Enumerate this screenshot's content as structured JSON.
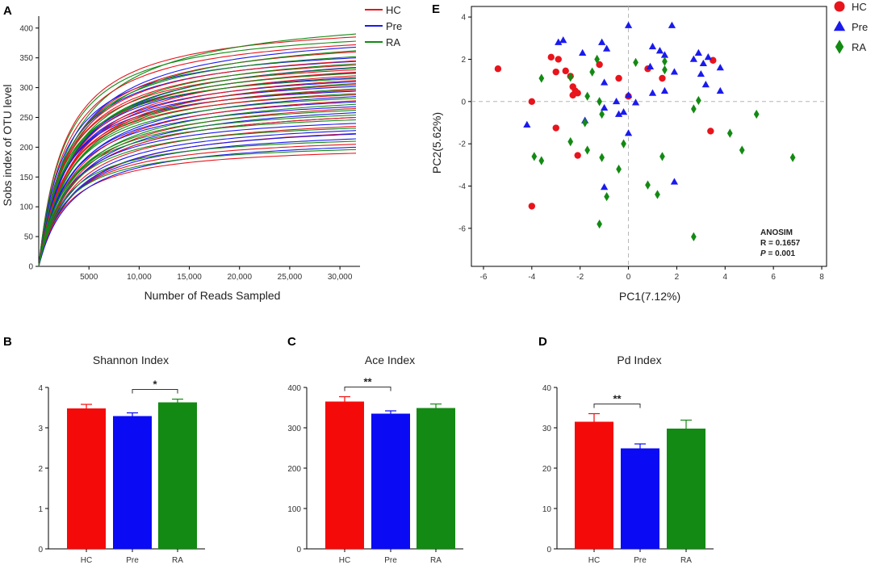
{
  "chart_data": [
    {
      "panel": "A",
      "type": "line",
      "xlabel": "Number of Reads Sampled",
      "ylabel": "Sobs index of OTU level",
      "xlim": [
        0,
        32000
      ],
      "ylim": [
        0,
        420
      ],
      "xticks": [
        5000,
        10000,
        15000,
        20000,
        25000,
        30000
      ],
      "xtick_labels": [
        "5000",
        "10,000",
        "15,000",
        "20,000",
        "25,000",
        "30,000"
      ],
      "yticks": [
        0,
        50,
        100,
        150,
        200,
        250,
        300,
        350,
        400
      ],
      "ytick_labels": [
        "0",
        "50",
        "100",
        "150",
        "200",
        "250",
        "300",
        "350",
        "400"
      ],
      "legend": [
        {
          "name": "HC",
          "color": "#e8141c"
        },
        {
          "name": "Pre",
          "color": "#1a1aee"
        },
        {
          "name": "RA",
          "color": "#138a13"
        }
      ],
      "series": [
        {
          "group": "HC",
          "final_values": [
            385,
            372,
            360,
            345,
            338,
            330,
            326,
            320,
            312,
            305,
            296,
            288,
            278,
            265,
            250,
            235,
            223,
            205,
            190
          ]
        },
        {
          "group": "Pre",
          "final_values": [
            368,
            350,
            344,
            334,
            325,
            317,
            310,
            302,
            294,
            285,
            276,
            268,
            258,
            250,
            240,
            228,
            222,
            214,
            200
          ]
        },
        {
          "group": "RA",
          "final_values": [
            390,
            378,
            362,
            352,
            340,
            333,
            324,
            315,
            307,
            298,
            290,
            282,
            272,
            262,
            254,
            246,
            232,
            210,
            196
          ]
        }
      ]
    },
    {
      "panel": "E",
      "type": "scatter",
      "xlabel": "PC1(7.12%)",
      "ylabel": "PC2(5.62%)",
      "xlim": [
        -6.5,
        8.2
      ],
      "ylim": [
        -7.8,
        4.5
      ],
      "xticks": [
        -6,
        -4,
        -2,
        0,
        2,
        4,
        6,
        8
      ],
      "xtick_labels": [
        "-6",
        "-4",
        "-2",
        "0",
        "2",
        "4",
        "6",
        "8"
      ],
      "yticks": [
        -6,
        -4,
        -2,
        0,
        2,
        4
      ],
      "ytick_labels": [
        "-6",
        "-4",
        "-2",
        "0",
        "2",
        "4"
      ],
      "legend": [
        {
          "name": "HC",
          "color": "#e8141c",
          "shape": "circle"
        },
        {
          "name": "Pre",
          "color": "#1a1aee",
          "shape": "triangle"
        },
        {
          "name": "RA",
          "color": "#138a13",
          "shape": "diamond"
        }
      ],
      "annotation": {
        "title": "ANOSIM",
        "r_text": "R = 0.1657",
        "p_label": "P",
        "p_text": " = 0.001"
      },
      "series": [
        {
          "name": "HC",
          "points": [
            [
              -5.4,
              1.55
            ],
            [
              -4.0,
              0.0
            ],
            [
              -3.2,
              2.1
            ],
            [
              -2.9,
              2.0
            ],
            [
              -3.0,
              1.4
            ],
            [
              -2.6,
              1.45
            ],
            [
              -2.4,
              1.2
            ],
            [
              -2.3,
              0.7
            ],
            [
              -2.2,
              0.5
            ],
            [
              -2.3,
              0.3
            ],
            [
              -2.1,
              0.4
            ],
            [
              -1.2,
              1.75
            ],
            [
              -0.4,
              1.1
            ],
            [
              0.8,
              1.55
            ],
            [
              -3.0,
              -1.25
            ],
            [
              -2.1,
              -2.55
            ],
            [
              -4.0,
              -4.95
            ],
            [
              0.0,
              0.25
            ],
            [
              1.4,
              1.1
            ],
            [
              3.5,
              1.95
            ],
            [
              3.4,
              -1.4
            ]
          ]
        },
        {
          "name": "Pre",
          "points": [
            [
              -2.9,
              2.8
            ],
            [
              -2.7,
              2.9
            ],
            [
              -1.9,
              2.3
            ],
            [
              -1.1,
              2.8
            ],
            [
              -0.9,
              2.5
            ],
            [
              0.0,
              3.6
            ],
            [
              1.0,
              2.6
            ],
            [
              1.3,
              2.4
            ],
            [
              1.8,
              3.6
            ],
            [
              1.5,
              2.2
            ],
            [
              2.7,
              2.0
            ],
            [
              2.9,
              2.3
            ],
            [
              3.1,
              1.8
            ],
            [
              3.3,
              2.1
            ],
            [
              3.8,
              1.6
            ],
            [
              3.0,
              1.3
            ],
            [
              0.9,
              1.65
            ],
            [
              1.9,
              1.4
            ],
            [
              -1.0,
              0.9
            ],
            [
              -0.5,
              0.0
            ],
            [
              0.0,
              0.3
            ],
            [
              0.3,
              -0.05
            ],
            [
              1.0,
              0.4
            ],
            [
              1.5,
              0.5
            ],
            [
              3.2,
              0.8
            ],
            [
              3.8,
              0.5
            ],
            [
              -0.2,
              -0.5
            ],
            [
              -0.4,
              -0.6
            ],
            [
              -4.2,
              -1.1
            ],
            [
              -1.8,
              -0.9
            ],
            [
              0.0,
              -1.5
            ],
            [
              -1.0,
              -0.3
            ],
            [
              1.9,
              -3.8
            ],
            [
              -1.0,
              -4.05
            ]
          ]
        },
        {
          "name": "RA",
          "points": [
            [
              -3.6,
              1.1
            ],
            [
              -2.4,
              1.15
            ],
            [
              -1.5,
              1.4
            ],
            [
              -1.3,
              2.0
            ],
            [
              -1.7,
              0.25
            ],
            [
              -1.2,
              0.0
            ],
            [
              -1.1,
              -0.6
            ],
            [
              -1.8,
              -1.0
            ],
            [
              -1.7,
              -2.3
            ],
            [
              -1.1,
              -2.65
            ],
            [
              -2.4,
              -1.9
            ],
            [
              -3.9,
              -2.6
            ],
            [
              -3.6,
              -2.8
            ],
            [
              -0.2,
              -2.0
            ],
            [
              -0.4,
              -3.2
            ],
            [
              -0.9,
              -4.5
            ],
            [
              -1.2,
              -5.8
            ],
            [
              0.8,
              -3.95
            ],
            [
              1.2,
              -4.4
            ],
            [
              1.4,
              -2.6
            ],
            [
              0.3,
              1.85
            ],
            [
              1.5,
              1.5
            ],
            [
              1.5,
              1.9
            ],
            [
              2.7,
              -0.35
            ],
            [
              2.9,
              0.05
            ],
            [
              4.2,
              -1.5
            ],
            [
              4.7,
              -2.3
            ],
            [
              5.3,
              -0.6
            ],
            [
              6.8,
              -2.65
            ],
            [
              2.7,
              -6.4
            ]
          ]
        }
      ]
    },
    {
      "panel": "B",
      "type": "bar",
      "title": "Shannon Index",
      "categories": [
        "HC",
        "Pre",
        "RA"
      ],
      "values": [
        3.48,
        3.29,
        3.63
      ],
      "errors": [
        0.1,
        0.08,
        0.08
      ],
      "colors": [
        "#f50a0a",
        "#0a0af5",
        "#138a13"
      ],
      "ylim": [
        0,
        4
      ],
      "yticks": [
        0,
        1,
        2,
        3,
        4
      ],
      "ytick_labels": [
        "0",
        "1",
        "2",
        "3",
        "4"
      ],
      "significance": {
        "from": 1,
        "to": 2,
        "label": "*"
      }
    },
    {
      "panel": "C",
      "type": "bar",
      "title": "Ace Index",
      "categories": [
        "HC",
        "Pre",
        "RA"
      ],
      "values": [
        365,
        335,
        349
      ],
      "errors": [
        12,
        7,
        10
      ],
      "colors": [
        "#f50a0a",
        "#0a0af5",
        "#138a13"
      ],
      "ylim": [
        0,
        400
      ],
      "yticks": [
        0,
        100,
        200,
        300,
        400
      ],
      "ytick_labels": [
        "0",
        "100",
        "200",
        "300",
        "400"
      ],
      "significance": {
        "from": 0,
        "to": 1,
        "label": "**"
      }
    },
    {
      "panel": "D",
      "type": "bar",
      "title": "Pd Index",
      "categories": [
        "HC",
        "Pre",
        "RA"
      ],
      "values": [
        31.5,
        24.9,
        29.8
      ],
      "errors": [
        2.0,
        1.1,
        2.1
      ],
      "colors": [
        "#f50a0a",
        "#0a0af5",
        "#138a13"
      ],
      "ylim": [
        0,
        40
      ],
      "yticks": [
        0,
        10,
        20,
        30,
        40
      ],
      "ytick_labels": [
        "0",
        "10",
        "20",
        "30",
        "40"
      ],
      "significance": {
        "from": 0,
        "to": 1,
        "label": "**"
      }
    }
  ]
}
